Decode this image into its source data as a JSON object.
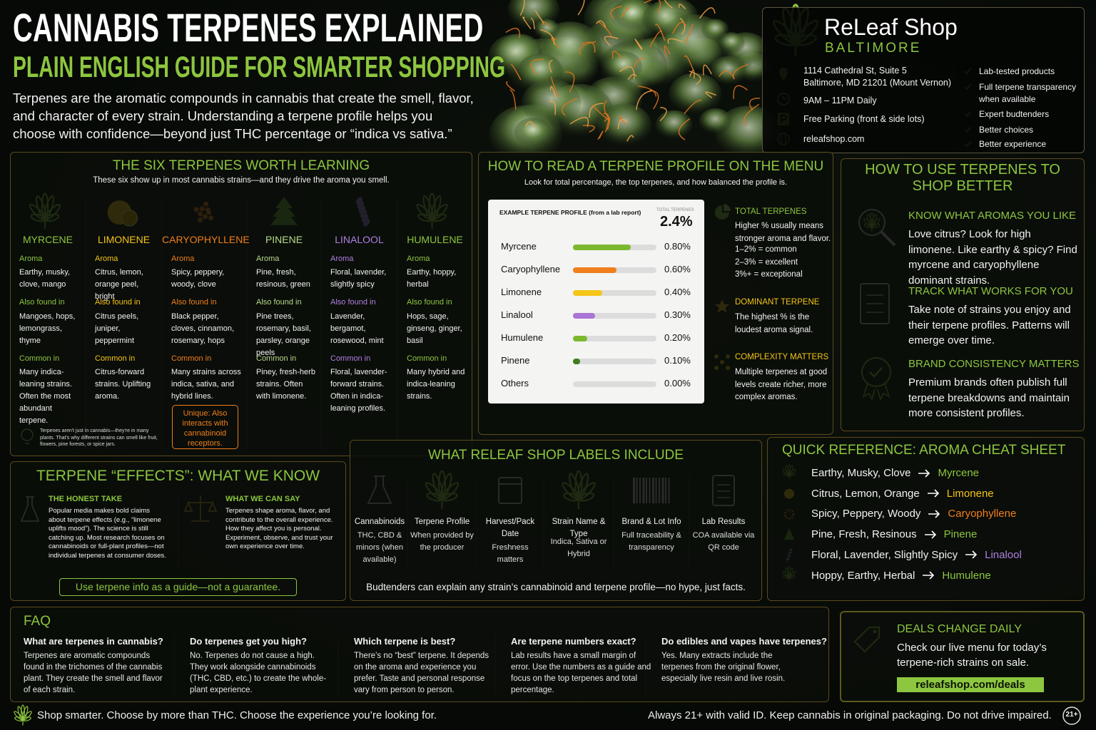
{
  "header": {
    "title": "CANNABIS TERPENES EXPLAINED",
    "subtitle": "PLAIN ENGLISH GUIDE FOR SMARTER SHOPPING",
    "intro": "Terpenes are the aromatic compounds in cannabis that create the smell, flavor, and character of every strain. Understanding a terpene profile helps you choose with confidence—beyond just THC percentage or “indica vs sativa.”"
  },
  "store": {
    "name": "ReLeaf Shop",
    "city": "BALTIMORE",
    "address": [
      "1114 Cathedral St, Suite 5",
      "Baltimore, MD 21201 (Mount Vernon)"
    ],
    "hours": "9AM – 11PM Daily",
    "parking": "Free Parking (front & side lots)",
    "website": "releafshop.com",
    "features": [
      "Lab-tested products",
      "Full terpene transparency when available",
      "Expert budtenders",
      "Better choices",
      "Better experience"
    ]
  },
  "six": {
    "title": "THE SIX TERPENES WORTH LEARNING",
    "subtitle": "These six show up in most cannabis strains—and they drive the aroma you smell.",
    "aroma_label": "Aroma",
    "found_label": "Also found in",
    "common_label": "Common in",
    "terpenes": [
      {
        "name": "MYRCENE",
        "color": "#8dc63f",
        "aroma": "Earthy, musky, clove, mango",
        "found": "Mangoes, hops, lemongrass, thyme",
        "common": "Many indica-leaning strains. Often the most abundant terpene."
      },
      {
        "name": "LIMONENE",
        "color": "#f5c518",
        "aroma": "Citrus, lemon, orange peel, bright",
        "found": "Citrus peels, juniper, peppermint",
        "common": "Citrus-forward strains. Uplifting aroma."
      },
      {
        "name": "CARYOPHYLLENE",
        "color": "#f07f1c",
        "aroma": "Spicy, peppery, woody, clove",
        "found": "Black pepper, cloves, cinnamon, rosemary, hops",
        "common": "Many strains across indica, sativa, and hybrid lines."
      },
      {
        "name": "PINENE",
        "color": "#b9d98a",
        "aroma": "Pine, fresh, resinous, green",
        "found": "Pine trees, rosemary, basil, parsley, orange peels",
        "common": "Piney, fresh-herb strains. Often with limonene."
      },
      {
        "name": "LINALOOL",
        "color": "#b07fe0",
        "aroma": "Floral, lavender, slightly spicy",
        "found": "Lavender, bergamot, rosewood, mint",
        "common": "Floral, lavender-forward strains. Often in indica-leaning profiles."
      },
      {
        "name": "HUMULENE",
        "color": "#8dc63f",
        "aroma": "Earthy, hoppy, herbal",
        "found": "Hops, sage, ginseng, ginger, basil",
        "common": "Many hybrid and indica-leaning strains."
      }
    ],
    "note": "Unique: Also interacts with cannabinoid receptors.",
    "footnote": "Terpenes aren't just in cannabis—they're in many plants. That's why different strains can smell like fruit, flowers, pine forests, or spice jars."
  },
  "profile": {
    "title": "HOW TO READ A TERPENE PROFILE ON THE MENU",
    "subtitle": "Look for total percentage, the top terpenes, and how balanced the profile is.",
    "card_title": "EXAMPLE TERPENE PROFILE (from a lab report)",
    "total_label": "TOTAL TERPENES",
    "total": "2.4%",
    "rows": [
      "Myrcene",
      "Caryophyllene",
      "Limonene",
      "Linalool",
      "Humulene",
      "Pinene",
      "Others"
    ],
    "values": [
      0.8,
      0.6,
      0.4,
      0.3,
      0.2,
      0.1,
      0
    ],
    "value_labels": [
      "0.80%",
      "0.60%",
      "0.40%",
      "0.30%",
      "0.20%",
      "0.10%",
      "0.00%"
    ],
    "colors": [
      "#7cb82f",
      "#f07f1c",
      "#f5c518",
      "#a874d6",
      "#7cb82f",
      "#3f7d1f",
      "#9a9a9a"
    ],
    "xlim": [
      0,
      1.15
    ],
    "tips": [
      {
        "title": "TOTAL TERPENES",
        "text": "Higher % usually means stronger aroma and flavor.",
        "lines": [
          "1–2% = common",
          "2–3% = excellent",
          "3%+ = exceptional"
        ]
      },
      {
        "title": "DOMINANT TERPENE",
        "text": "The highest % is the loudest aroma signal."
      },
      {
        "title": "COMPLEXITY MATTERS",
        "text": "Multiple terpenes at good levels create richer, more complex aromas."
      }
    ]
  },
  "use": {
    "title": "HOW TO USE TERPENES TO SHOP BETTER",
    "items": [
      {
        "title": "KNOW WHAT AROMAS YOU LIKE",
        "text": "Love citrus? Look for high limonene. Like earthy & spicy? Find myrcene and caryophyllene dominant strains."
      },
      {
        "title": "TRACK WHAT WORKS FOR YOU",
        "text": "Take note of strains you enjoy and their terpene profiles. Patterns will emerge over time."
      },
      {
        "title": "BRAND CONSISTENCY MATTERS",
        "text": "Premium brands often publish full terpene breakdowns and maintain more consistent profiles."
      }
    ]
  },
  "effects": {
    "title": "TERPENE “EFFECTS”: WHAT WE KNOW",
    "columns": [
      {
        "title": "THE HONEST TAKE",
        "text": "Popular media makes bold claims about terpene effects (e.g., “limonene uplifts mood”). The science is still catching up. Most research focuses on cannabinoids or full-plant profiles—not individual terpenes at consumer doses."
      },
      {
        "title": "WHAT WE CAN SAY",
        "text": "Terpenes shape aroma, flavor, and contribute to the overall experience. How they affect you is personal. Experiment, observe, and trust your own experience over time."
      }
    ],
    "callout": "Use terpene info as a guide—not a guarantee."
  },
  "labels": {
    "title": "WHAT RELEAF SHOP LABELS INCLUDE",
    "items": [
      {
        "title": "Cannabinoids",
        "text": "THC, CBD & minors (when available)"
      },
      {
        "title": "Terpene Profile",
        "text": "When provided by the producer"
      },
      {
        "title": "Harvest/Pack Date",
        "text": "Freshness matters"
      },
      {
        "title": "Strain Name & Type",
        "text": "Indica, Sativa or Hybrid"
      },
      {
        "title": "Brand & Lot Info",
        "text": "Full traceability & transparency"
      },
      {
        "title": "Lab Results",
        "text": "COA available via QR code"
      }
    ],
    "footer": "Budtenders can explain any strain’s cannabinoid and terpene profile—no hype, just facts."
  },
  "reference": {
    "title": "QUICK REFERENCE: AROMA CHEAT SHEET",
    "rows": [
      {
        "aroma": "Earthy, Musky, Clove",
        "terpene": "Myrcene",
        "color": "#8dc63f"
      },
      {
        "aroma": "Citrus, Lemon, Orange",
        "terpene": "Limonene",
        "color": "#f5c518"
      },
      {
        "aroma": "Spicy, Peppery, Woody",
        "terpene": "Caryophyllene",
        "color": "#f07f1c"
      },
      {
        "aroma": "Pine, Fresh, Resinous",
        "terpene": "Pinene",
        "color": "#8dc63f"
      },
      {
        "aroma": "Floral, Lavender, Slightly Spicy",
        "terpene": "Linalool",
        "color": "#b07fe0"
      },
      {
        "aroma": "Hoppy, Earthy, Herbal",
        "terpene": "Humulene",
        "color": "#8dc63f"
      }
    ]
  },
  "faq": {
    "title": "FAQ",
    "items": [
      {
        "q": "What are terpenes in cannabis?",
        "a": "Terpenes are aromatic compounds found in the trichomes of the cannabis plant. They create the smell and flavor of each strain."
      },
      {
        "q": "Do terpenes get you high?",
        "a": "No. Terpenes do not cause a high. They work alongside cannabinoids (THC, CBD, etc.) to create the whole-plant experience."
      },
      {
        "q": "Which terpene is best?",
        "a": "There’s no “best” terpene. It depends on the aroma and experience you prefer. Taste and personal response vary from person to person."
      },
      {
        "q": "Are terpene numbers exact?",
        "a": "Lab results have a small margin of error. Use the numbers as a guide and focus on the top terpenes and total percentage."
      },
      {
        "q": "Do edibles and vapes have terpenes?",
        "a": "Yes. Many extracts include the terpenes from the original flower, especially live resin and live rosin."
      }
    ]
  },
  "deals": {
    "title": "DEALS CHANGE DAILY",
    "text": "Check our live menu for today’s terpene-rich strains on sale.",
    "link": "releafshop.com/deals"
  },
  "footer": {
    "left": "Shop smarter. Choose by more than THC. Choose the experience you’re looking for.",
    "right": "Always 21+ with valid ID. Keep cannabis in original packaging. Do not drive impaired.",
    "badge": "21+"
  }
}
